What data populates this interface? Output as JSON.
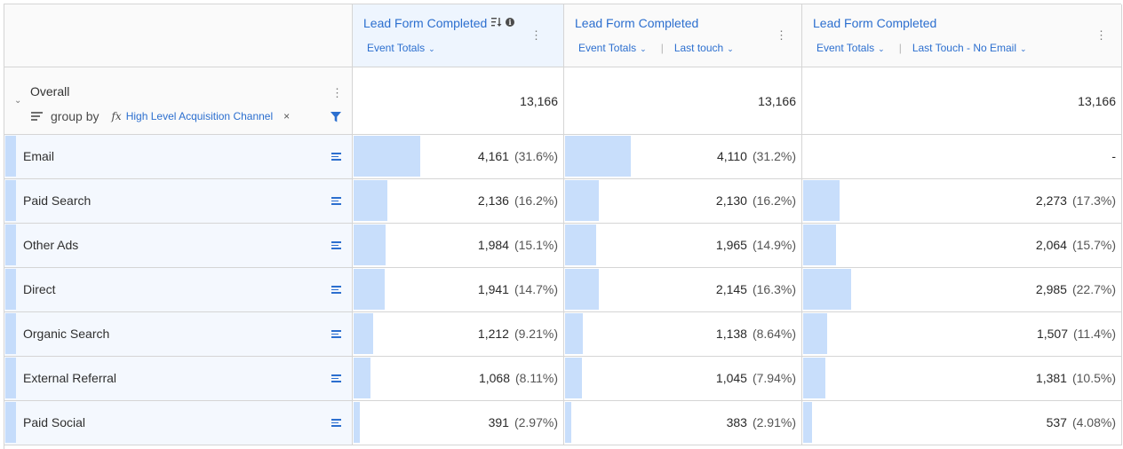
{
  "columns": [
    {
      "title": "Lead Form Completed",
      "sub1": "Event Totals",
      "sub2": "",
      "active": true
    },
    {
      "title": "Lead Form Completed",
      "sub1": "Event Totals",
      "sub2": "Last touch",
      "active": false
    },
    {
      "title": "Lead Form Completed",
      "sub1": "Event Totals",
      "sub2": "Last Touch - No Email",
      "active": false
    }
  ],
  "overall": {
    "label": "Overall",
    "group_by_label": "group by",
    "fx_symbol": "fx",
    "dimension": "High Level Acquisition Channel",
    "remove_symbol": "×",
    "totals": [
      "13,166",
      "13,166",
      "13,166"
    ]
  },
  "rows": [
    {
      "label": "Email",
      "cells": [
        {
          "value": "4,161",
          "pct": "(31.6%)",
          "share": 0.316
        },
        {
          "value": "4,110",
          "pct": "(31.2%)",
          "share": 0.312
        },
        {
          "value": "-",
          "pct": "",
          "share": 0
        }
      ]
    },
    {
      "label": "Paid Search",
      "cells": [
        {
          "value": "2,136",
          "pct": "(16.2%)",
          "share": 0.162
        },
        {
          "value": "2,130",
          "pct": "(16.2%)",
          "share": 0.162
        },
        {
          "value": "2,273",
          "pct": "(17.3%)",
          "share": 0.173
        }
      ]
    },
    {
      "label": "Other Ads",
      "cells": [
        {
          "value": "1,984",
          "pct": "(15.1%)",
          "share": 0.151
        },
        {
          "value": "1,965",
          "pct": "(14.9%)",
          "share": 0.149
        },
        {
          "value": "2,064",
          "pct": "(15.7%)",
          "share": 0.157
        }
      ]
    },
    {
      "label": "Direct",
      "cells": [
        {
          "value": "1,941",
          "pct": "(14.7%)",
          "share": 0.147
        },
        {
          "value": "2,145",
          "pct": "(16.3%)",
          "share": 0.163
        },
        {
          "value": "2,985",
          "pct": "(22.7%)",
          "share": 0.227
        }
      ]
    },
    {
      "label": "Organic Search",
      "cells": [
        {
          "value": "1,212",
          "pct": "(9.21%)",
          "share": 0.0921
        },
        {
          "value": "1,138",
          "pct": "(8.64%)",
          "share": 0.0864
        },
        {
          "value": "1,507",
          "pct": "(11.4%)",
          "share": 0.114
        }
      ]
    },
    {
      "label": "External Referral",
      "cells": [
        {
          "value": "1,068",
          "pct": "(8.11%)",
          "share": 0.0811
        },
        {
          "value": "1,045",
          "pct": "(7.94%)",
          "share": 0.0794
        },
        {
          "value": "1,381",
          "pct": "(10.5%)",
          "share": 0.105
        }
      ]
    },
    {
      "label": "Paid Social",
      "cells": [
        {
          "value": "391",
          "pct": "(2.97%)",
          "share": 0.0297
        },
        {
          "value": "383",
          "pct": "(2.91%)",
          "share": 0.0291
        },
        {
          "value": "537",
          "pct": "(4.08%)",
          "share": 0.0408
        }
      ]
    }
  ],
  "icons": {
    "sort": "sort-descending-icon",
    "info": "info-icon",
    "kebab": "more-options-icon",
    "chevron": "chevron-down-icon",
    "row": "breakdown-icon",
    "filter": "filter-icon",
    "collapse": "collapse-chevron-icon"
  },
  "colors": {
    "accent": "#2c6fcf",
    "bar": "#c8defb",
    "row_accent": "#c5dcfb",
    "active_header": "#eef5fe"
  }
}
